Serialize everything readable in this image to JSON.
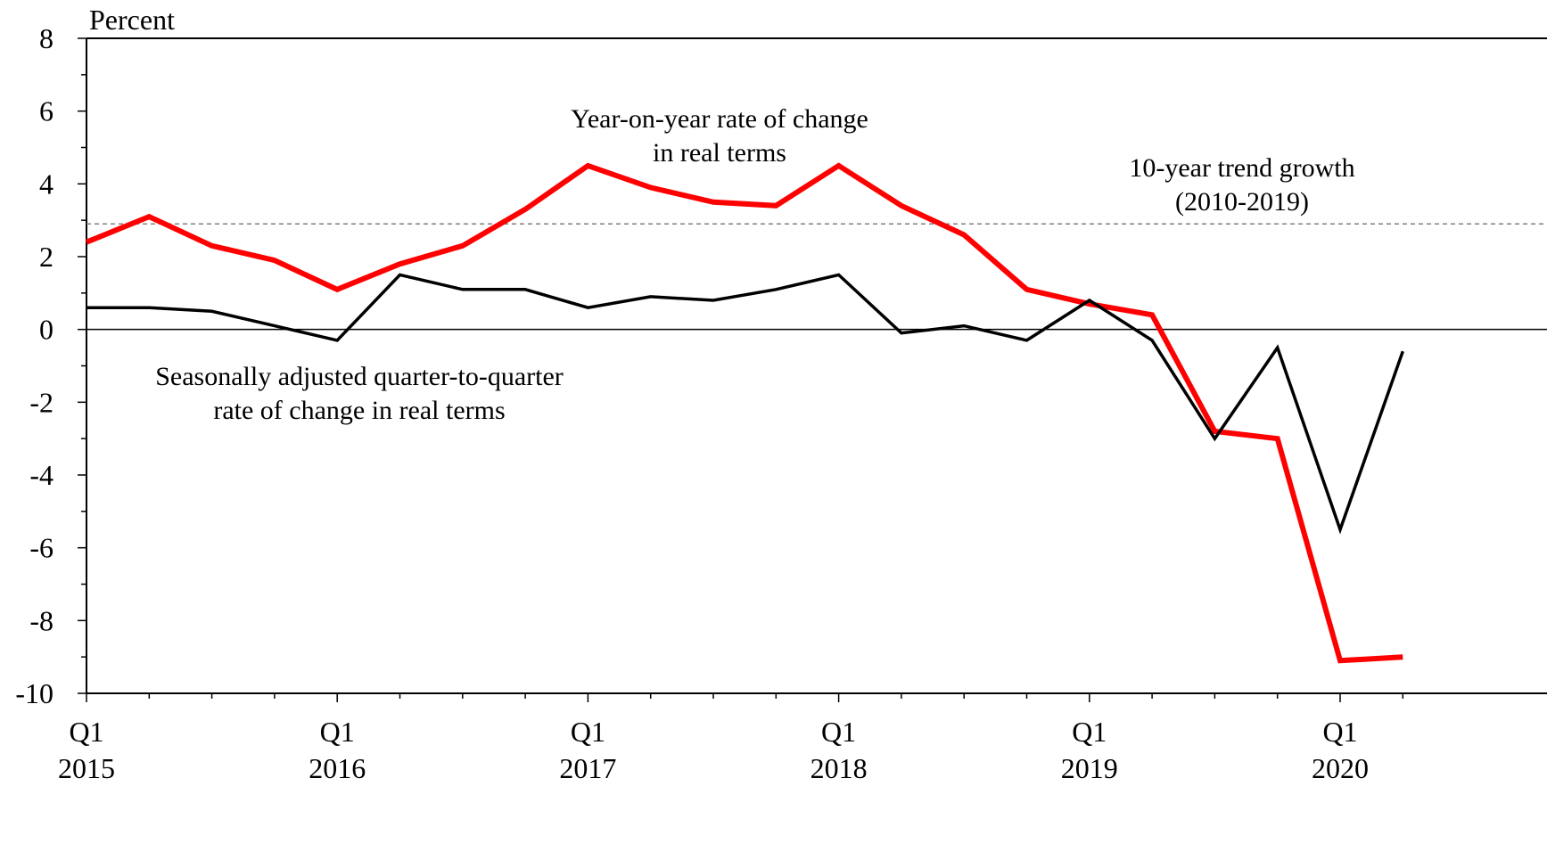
{
  "chart_data": {
    "type": "line",
    "ylabel": "Percent",
    "ylim": [
      -10,
      8
    ],
    "yticks": [
      8,
      6,
      4,
      2,
      0,
      -2,
      -4,
      -6,
      -8,
      -10
    ],
    "x_ticks": [
      {
        "q": "Q1",
        "year": "2015"
      },
      {
        "q": "Q1",
        "year": "2016"
      },
      {
        "q": "Q1",
        "year": "2017"
      },
      {
        "q": "Q1",
        "year": "2018"
      },
      {
        "q": "Q1",
        "year": "2019"
      },
      {
        "q": "Q1",
        "year": "2020"
      }
    ],
    "x": [
      "2015Q1",
      "2015Q2",
      "2015Q3",
      "2015Q4",
      "2016Q1",
      "2016Q2",
      "2016Q3",
      "2016Q4",
      "2017Q1",
      "2017Q2",
      "2017Q3",
      "2017Q4",
      "2018Q1",
      "2018Q2",
      "2018Q3",
      "2018Q4",
      "2019Q1",
      "2019Q2",
      "2019Q3",
      "2019Q4",
      "2020Q1",
      "2020Q2"
    ],
    "series": [
      {
        "name": "Year-on-year rate of change in real terms",
        "color": "#ff0000",
        "values": [
          2.4,
          3.1,
          2.3,
          1.9,
          1.1,
          1.8,
          2.3,
          3.3,
          4.5,
          3.9,
          3.5,
          3.4,
          4.5,
          3.4,
          2.6,
          1.1,
          0.7,
          0.4,
          -2.8,
          -3.0,
          -9.1,
          -9.0
        ]
      },
      {
        "name": "Seasonally adjusted quarter-to-quarter rate of change in real terms",
        "color": "#000000",
        "values": [
          0.6,
          0.6,
          0.5,
          0.1,
          -0.3,
          1.5,
          1.1,
          1.1,
          0.6,
          0.9,
          0.8,
          1.1,
          1.5,
          -0.1,
          0.1,
          -0.3,
          0.8,
          -0.3,
          -3.0,
          -0.5,
          -5.5,
          -0.6
        ]
      }
    ],
    "reference_line": {
      "value": 2.9,
      "style": "dashed",
      "color": "#808080"
    },
    "annotations": {
      "yoy": [
        "Year-on-year rate of change",
        "in real terms"
      ],
      "qoq": [
        "Seasonally adjusted quarter-to-quarter",
        "rate of change in real terms"
      ],
      "trend": [
        "10-year trend growth",
        "(2010-2019)"
      ]
    },
    "grid": false,
    "legend": "none"
  }
}
